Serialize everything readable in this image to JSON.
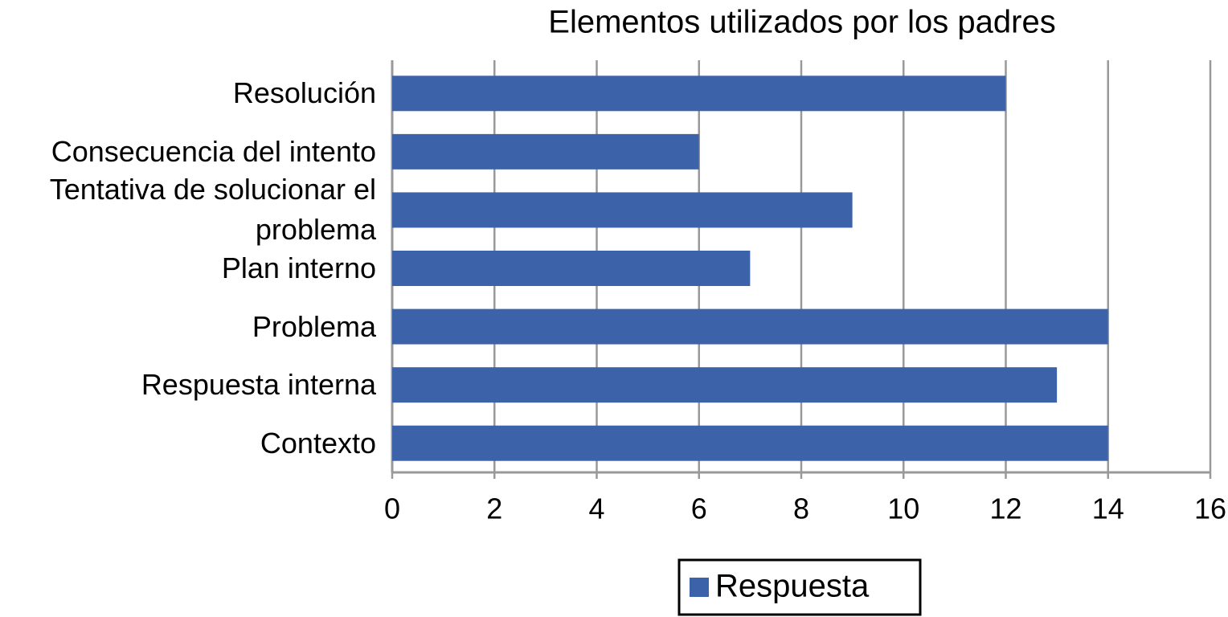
{
  "chart_data": {
    "type": "bar",
    "orientation": "horizontal",
    "title": "Elementos utilizados por los padres",
    "categories": [
      "Resolución",
      "Consecuencia del intento",
      "Tentativa de solucionar el problema",
      "Plan interno",
      "Problema",
      "Respuesta interna",
      "Contexto"
    ],
    "series": [
      {
        "name": "Respuesta",
        "color": "#3c62aa",
        "values": [
          12,
          6,
          9,
          7,
          14,
          13,
          14
        ]
      }
    ],
    "xlim": [
      0,
      16
    ],
    "xticks": [
      0,
      2,
      4,
      6,
      8,
      10,
      12,
      14,
      16
    ],
    "grid": true,
    "legend": "bottom"
  }
}
